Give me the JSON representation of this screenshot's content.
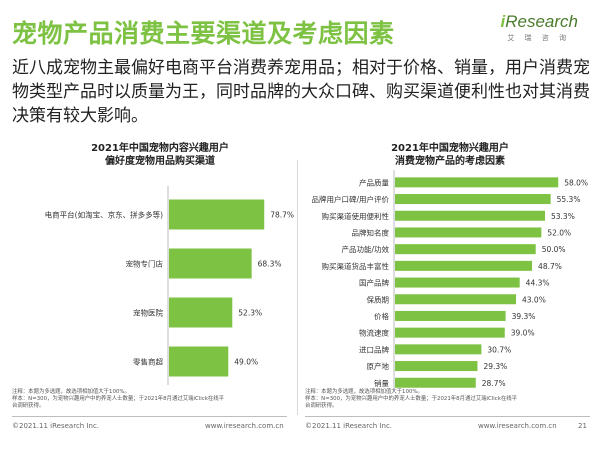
{
  "page": {
    "title": "宠物产品消费主要渠道及考虑因素",
    "logo_text": "iResearch",
    "logo_sub": "艾 瑞 咨 询",
    "summary": "近八成宠物主最偏好电商平台消费养宠用品；相对于价格、销量，用户消费宠物类型产品时以质量为王，同时品牌的大众口碑、购买渠道便利性也对其消费决策有较大影响。",
    "note_left": "注释：本题为多选题，故选项相加值大于100%。\n样本：N=300，为宠物兴趣用户中的养宠人士数量；于2021年8月通过艾瑞iClick在线平\n台调研获得。",
    "note_right": "注释：本题为多选题，故选项相加值大于100%。\n样本：N=300，为宠物兴趣用户中的养宠人士数量；于2021年8月通过艾瑞iClick在线平\n台调研获得。",
    "copyright_left": "©2021.11 iResearch Inc.",
    "url_left": "www.iresearch.com.cn",
    "copyright_right": "©2021.11 iResearch Inc.",
    "url_right": "www.iresearch.com.cn",
    "page_number": "21",
    "accent_color": "#7dc242"
  },
  "chart_data": [
    {
      "type": "bar",
      "orientation": "horizontal",
      "title": "2021年中国宠物内容兴趣用户\n偏好度宠物用品购买渠道",
      "categories": [
        "电商平台(如淘宝、京东、拼多多等)",
        "宠物专门店",
        "宠物医院",
        "零售商超"
      ],
      "values": [
        78.7,
        68.3,
        52.3,
        49.0
      ],
      "value_labels": [
        "78.7%",
        "68.3%",
        "52.3%",
        "49.0%"
      ],
      "unit": "%",
      "xlim": [
        0,
        100
      ],
      "bar_color": "#7dc242"
    },
    {
      "type": "bar",
      "orientation": "horizontal",
      "title": "2021年中国宠物兴趣用户\n消费宠物产品的考虑因素",
      "categories": [
        "产品质量",
        "品牌用户口碑/用户评价",
        "购买渠道使用便利性",
        "品牌知名度",
        "产品功能/功效",
        "购买渠道货品丰富性",
        "国产品牌",
        "保质期",
        "价格",
        "物流速度",
        "进口品牌",
        "原产地",
        "销量"
      ],
      "values": [
        58.0,
        55.3,
        53.3,
        52.0,
        50.0,
        48.7,
        44.3,
        43.0,
        39.3,
        39.0,
        30.7,
        29.3,
        28.7
      ],
      "value_labels": [
        "58.0%",
        "55.3%",
        "53.3%",
        "52.0%",
        "50.0%",
        "48.7%",
        "44.3%",
        "43.0%",
        "39.3%",
        "39.0%",
        "30.7%",
        "29.3%",
        "28.7%"
      ],
      "unit": "%",
      "xlim": [
        0,
        70
      ],
      "bar_color": "#7dc242"
    }
  ]
}
